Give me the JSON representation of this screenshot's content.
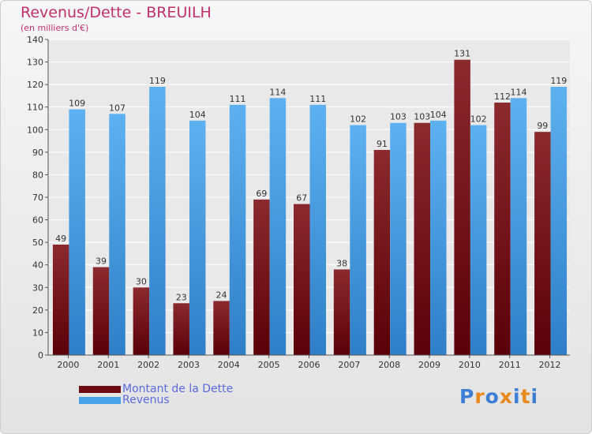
{
  "header": {
    "title": "Revenus/Dette - BREUILH",
    "subtitle": "(en milliers d'€)"
  },
  "legend": {
    "items": [
      {
        "label": "Montant de la Dette",
        "color": "#6e0a12"
      },
      {
        "label": "Revenus",
        "color": "#4aa3e8"
      }
    ]
  },
  "logo": {
    "text": "Proxiti",
    "letter_colors": [
      "#3d7fd4",
      "#e8891c",
      "#3d7fd4",
      "#e8891c",
      "#3d7fd4",
      "#e8891c",
      "#3d7fd4"
    ]
  },
  "colors": {
    "dette": "#6e0a12",
    "revenus": "#4aa3e8",
    "grid": "#ffffff",
    "axis_text": "#333333"
  },
  "chart_data": {
    "type": "bar",
    "title": "Revenus/Dette - BREUILH",
    "subtitle": "(en milliers d'€)",
    "xlabel": "",
    "ylabel": "",
    "ylim": [
      0,
      140
    ],
    "yticks": [
      0,
      10,
      20,
      30,
      40,
      50,
      60,
      70,
      80,
      90,
      100,
      110,
      120,
      130,
      140
    ],
    "grid": true,
    "legend_position": "bottom-left",
    "categories": [
      "2000",
      "2001",
      "2002",
      "2003",
      "2004",
      "2005",
      "2006",
      "2007",
      "2008",
      "2009",
      "2010",
      "2011",
      "2012"
    ],
    "series": [
      {
        "name": "Montant de la Dette",
        "color": "#6e0a12",
        "values": [
          49,
          39,
          30,
          23,
          24,
          69,
          67,
          38,
          91,
          103,
          131,
          112,
          99
        ]
      },
      {
        "name": "Revenus",
        "color": "#4aa3e8",
        "values": [
          109,
          107,
          119,
          104,
          111,
          114,
          111,
          102,
          103,
          104,
          102,
          114,
          119
        ]
      }
    ]
  }
}
